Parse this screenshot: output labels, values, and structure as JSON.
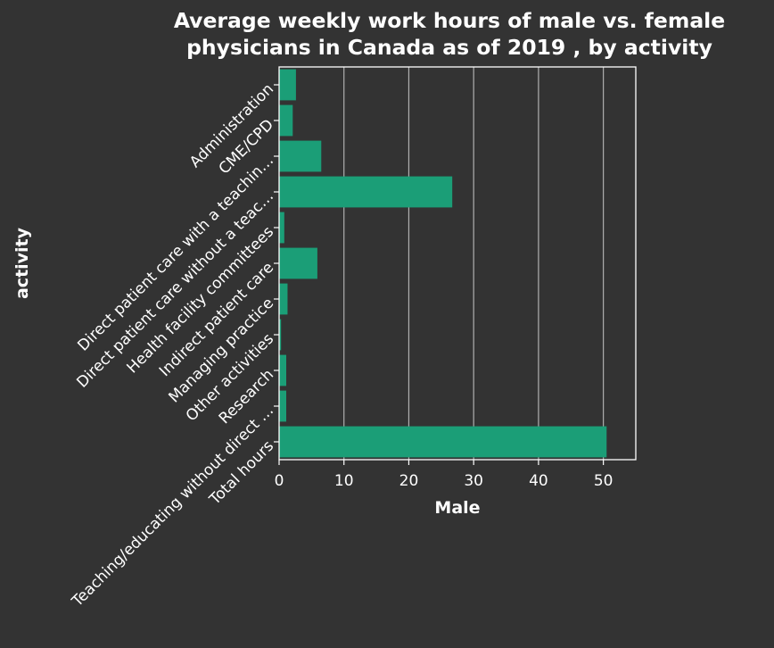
{
  "colors": {
    "background": "#333333",
    "bar": "#1b9e77",
    "text": "#ffffff",
    "grid": "#b0b0b0"
  },
  "chart_data": {
    "type": "bar",
    "orientation": "horizontal",
    "title_lines": [
      "Average weekly work hours of male vs. female",
      "physicians in Canada as of 2019 , by activity"
    ],
    "xlabel": "Male",
    "ylabel": "activity",
    "xlim": [
      0,
      55
    ],
    "xticks": [
      0,
      10,
      20,
      30,
      40,
      50
    ],
    "grid": "vertical",
    "categories": [
      "Administration",
      "CME/CPD",
      "Direct patient care with a teachin…",
      "Direct patient care without a teac…",
      "Health facility committees",
      "Indirect patient care",
      "Managing practice",
      "Other activities",
      "Research",
      "Teaching/educating without direct …",
      "Total hours"
    ],
    "values": [
      2.6,
      2.1,
      6.5,
      26.7,
      0.8,
      5.9,
      1.3,
      0.3,
      1.1,
      1.1,
      50.5
    ]
  }
}
